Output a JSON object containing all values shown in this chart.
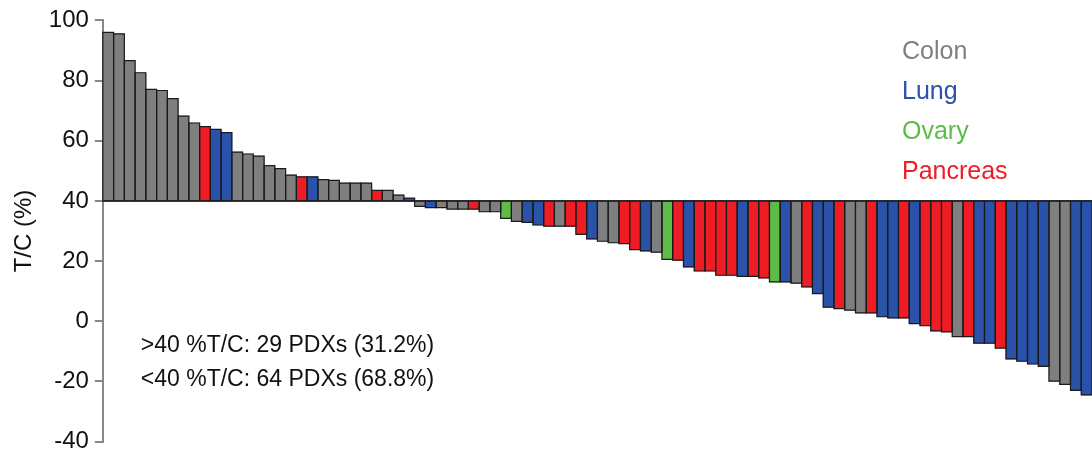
{
  "chart_data": {
    "type": "bar",
    "ylabel": "T/C (%)",
    "legend": "top right",
    "grid": false,
    "tick_labels": "y",
    "ref_lines": [
      {
        "axis": "y",
        "value": 40,
        "color": "#222222"
      }
    ],
    "ylim": [
      -40,
      100
    ],
    "yticks": [
      -40,
      -20,
      0,
      20,
      40,
      60,
      80,
      100
    ],
    "categories": [
      null,
      null,
      null,
      null,
      null,
      null,
      null,
      null,
      null,
      null,
      null,
      null,
      null,
      null,
      null,
      null,
      null,
      null,
      null,
      null,
      null,
      null,
      null,
      null,
      null,
      null,
      null,
      null,
      null,
      null,
      null,
      null,
      null,
      null,
      null,
      null,
      null,
      null,
      null,
      null,
      null,
      null,
      null,
      null,
      null,
      null,
      null,
      null,
      null,
      null,
      null,
      null,
      null,
      null,
      null,
      null,
      null,
      null,
      null,
      null,
      null,
      null,
      null,
      null,
      null,
      null,
      null,
      null,
      null,
      null,
      null,
      null,
      null,
      null,
      null,
      null,
      null,
      null,
      null,
      null,
      null,
      null,
      null,
      null,
      null,
      null,
      null,
      null,
      null,
      null,
      null,
      null
    ],
    "series": [
      {
        "name": "Colon",
        "color": "#7f7f7f",
        "values": [
          56.0,
          55.5,
          46.6,
          42.6,
          37.1,
          36.7,
          34.0,
          28.2,
          25.9,
          null,
          null,
          null,
          16.2,
          15.6,
          14.9,
          11.7,
          10.7,
          8.6,
          null,
          null,
          7.1,
          6.8,
          5.9,
          5.9,
          5.9,
          null,
          3.5,
          1.9,
          null,
          -1.8,
          null,
          -2.2,
          -2.7,
          -2.7,
          null,
          -3.6,
          -3.6,
          null,
          -6.8,
          null,
          null,
          null,
          -8.4,
          null,
          null,
          null,
          -13.4,
          -13.9,
          null,
          null,
          null,
          -17.0,
          null,
          null,
          null,
          null,
          null,
          null,
          null,
          null,
          null,
          null,
          null,
          null,
          -27.3,
          null,
          null,
          null,
          null,
          -36.3,
          -37.2,
          null,
          null,
          null,
          null,
          null,
          null,
          null,
          null,
          -45.1,
          null,
          null,
          null,
          null,
          null,
          null,
          null,
          null,
          -59.9,
          -61.0,
          null,
          null
        ],
        "base": [
          40,
          40,
          40,
          40,
          40,
          40,
          40,
          40,
          40,
          null,
          null,
          null,
          40,
          40,
          40,
          40,
          40,
          40,
          null,
          null,
          40,
          40,
          40,
          40,
          40,
          null,
          40,
          40,
          null,
          40,
          null,
          40,
          40,
          40,
          null,
          40,
          40,
          null,
          40,
          null,
          null,
          null,
          40,
          null,
          null,
          null,
          40,
          40,
          null,
          null,
          null,
          40,
          null,
          null,
          null,
          null,
          null,
          null,
          null,
          null,
          null,
          null,
          null,
          null,
          40,
          null,
          null,
          null,
          null,
          40,
          40,
          null,
          null,
          null,
          null,
          null,
          null,
          null,
          null,
          40,
          null,
          null,
          null,
          null,
          null,
          null,
          null,
          null,
          40,
          40,
          null,
          null
        ]
      },
      {
        "name": "Lung",
        "color": "#2a52a8",
        "values": [
          null,
          null,
          null,
          null,
          null,
          null,
          null,
          null,
          null,
          null,
          23.8,
          22.7,
          null,
          null,
          null,
          null,
          null,
          null,
          null,
          8.0,
          null,
          null,
          null,
          null,
          null,
          null,
          null,
          null,
          0.9,
          null,
          -2.2,
          null,
          null,
          null,
          null,
          null,
          null,
          null,
          null,
          -7.1,
          -8.0,
          null,
          null,
          null,
          null,
          -12.6,
          null,
          null,
          null,
          null,
          -16.6,
          null,
          null,
          null,
          -21.9,
          null,
          null,
          null,
          null,
          -25.1,
          null,
          null,
          null,
          -26.9,
          null,
          null,
          -30.8,
          -35.3,
          null,
          null,
          null,
          null,
          -38.5,
          -38.9,
          null,
          -40.8,
          null,
          null,
          null,
          null,
          null,
          -47.3,
          -47.3,
          null,
          -52.5,
          -53.3,
          -54.2,
          -55.0,
          null,
          null,
          -63.0,
          -64.5
        ],
        "base": [
          null,
          null,
          null,
          null,
          null,
          null,
          null,
          null,
          null,
          null,
          40,
          40,
          null,
          null,
          null,
          null,
          null,
          null,
          null,
          40,
          null,
          null,
          null,
          null,
          null,
          null,
          null,
          null,
          40,
          null,
          40,
          null,
          null,
          null,
          null,
          null,
          null,
          null,
          null,
          40,
          40,
          null,
          null,
          null,
          null,
          40,
          null,
          null,
          null,
          null,
          40,
          null,
          null,
          null,
          40,
          null,
          null,
          null,
          null,
          40,
          null,
          null,
          null,
          40,
          null,
          null,
          40,
          40,
          null,
          null,
          null,
          null,
          40,
          40,
          null,
          40,
          null,
          null,
          null,
          null,
          null,
          40,
          40,
          null,
          40,
          40,
          40,
          40,
          null,
          null,
          40,
          40
        ]
      },
      {
        "name": "Ovary",
        "color": "#5bbd45",
        "values": [
          null,
          null,
          null,
          null,
          null,
          null,
          null,
          null,
          null,
          null,
          null,
          null,
          null,
          null,
          null,
          null,
          null,
          null,
          null,
          null,
          null,
          null,
          null,
          null,
          null,
          null,
          null,
          null,
          null,
          null,
          null,
          null,
          null,
          null,
          null,
          null,
          null,
          -5.8,
          null,
          null,
          null,
          null,
          null,
          null,
          null,
          null,
          null,
          null,
          null,
          null,
          null,
          null,
          -19.4,
          null,
          null,
          null,
          null,
          null,
          null,
          null,
          null,
          null,
          -26.9,
          null,
          null,
          null,
          null,
          null,
          null,
          null,
          null,
          null,
          null,
          null,
          null,
          null,
          null,
          null,
          null,
          null,
          null,
          null,
          null,
          null,
          null,
          null,
          null,
          null,
          null,
          null,
          null,
          null
        ],
        "base": [
          null,
          null,
          null,
          null,
          null,
          null,
          null,
          null,
          null,
          null,
          null,
          null,
          null,
          null,
          null,
          null,
          null,
          null,
          null,
          null,
          null,
          null,
          null,
          null,
          null,
          null,
          null,
          null,
          null,
          null,
          null,
          null,
          null,
          null,
          null,
          null,
          null,
          40,
          null,
          null,
          null,
          null,
          null,
          null,
          null,
          null,
          null,
          null,
          null,
          null,
          null,
          null,
          40,
          null,
          null,
          null,
          null,
          null,
          null,
          null,
          null,
          null,
          40,
          null,
          null,
          null,
          null,
          null,
          null,
          null,
          null,
          null,
          null,
          null,
          null,
          null,
          null,
          null,
          null,
          null,
          null,
          null,
          null,
          null,
          null,
          null,
          null,
          null,
          null,
          null,
          null,
          null
        ]
      },
      {
        "name": "Pancreas",
        "color": "#ee1c25",
        "values": [
          null,
          null,
          null,
          null,
          null,
          null,
          null,
          null,
          null,
          24.7,
          null,
          null,
          null,
          null,
          null,
          null,
          null,
          null,
          8.0,
          null,
          null,
          null,
          null,
          null,
          null,
          3.5,
          null,
          null,
          null,
          null,
          null,
          null,
          null,
          null,
          -2.7,
          null,
          null,
          null,
          null,
          null,
          null,
          -8.4,
          null,
          -8.4,
          -11.1,
          null,
          null,
          null,
          -14.2,
          -16.2,
          null,
          null,
          null,
          -19.7,
          null,
          -23.3,
          -23.3,
          -24.7,
          -24.7,
          null,
          -25.1,
          -25.6,
          null,
          null,
          null,
          -28.6,
          null,
          null,
          -35.8,
          null,
          null,
          -37.2,
          null,
          null,
          -38.9,
          null,
          -41.5,
          -43.2,
          -43.5,
          null,
          -45.1,
          null,
          null,
          -48.9,
          null,
          null,
          null,
          null,
          null,
          null,
          null,
          null
        ],
        "base": [
          null,
          null,
          null,
          null,
          null,
          null,
          null,
          null,
          null,
          40,
          null,
          null,
          null,
          null,
          null,
          null,
          null,
          null,
          40,
          null,
          null,
          null,
          null,
          null,
          null,
          40,
          null,
          null,
          null,
          null,
          null,
          null,
          null,
          null,
          40,
          null,
          null,
          null,
          null,
          null,
          null,
          40,
          null,
          40,
          40,
          null,
          null,
          null,
          40,
          40,
          null,
          null,
          null,
          40,
          null,
          40,
          40,
          40,
          40,
          null,
          40,
          40,
          null,
          null,
          null,
          40,
          null,
          null,
          40,
          null,
          null,
          40,
          null,
          null,
          40,
          null,
          40,
          40,
          40,
          null,
          40,
          null,
          null,
          40,
          null,
          null,
          null,
          null,
          null,
          null,
          null,
          null
        ]
      }
    ],
    "annotations": [
      ">40 %T/C: 29 PDXs (31.2%)",
      "<40 %T/C: 64 PDXs (68.8%)"
    ]
  }
}
